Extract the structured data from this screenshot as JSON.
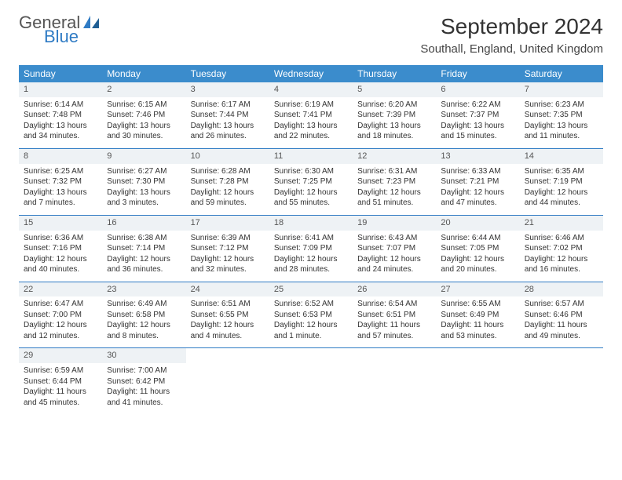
{
  "brand": {
    "general": "General",
    "blue": "Blue",
    "sail_color": "#2f7bc4"
  },
  "header": {
    "month_title": "September 2024",
    "location": "Southall, England, United Kingdom"
  },
  "colors": {
    "header_bg": "#3b8ccc",
    "header_fg": "#ffffff",
    "rule": "#2f7bc4",
    "daynum_bg": "#eef2f5",
    "text": "#333333"
  },
  "weekdays": [
    "Sunday",
    "Monday",
    "Tuesday",
    "Wednesday",
    "Thursday",
    "Friday",
    "Saturday"
  ],
  "weeks": [
    [
      {
        "n": "1",
        "sr": "Sunrise: 6:14 AM",
        "ss": "Sunset: 7:48 PM",
        "dl1": "Daylight: 13 hours",
        "dl2": "and 34 minutes."
      },
      {
        "n": "2",
        "sr": "Sunrise: 6:15 AM",
        "ss": "Sunset: 7:46 PM",
        "dl1": "Daylight: 13 hours",
        "dl2": "and 30 minutes."
      },
      {
        "n": "3",
        "sr": "Sunrise: 6:17 AM",
        "ss": "Sunset: 7:44 PM",
        "dl1": "Daylight: 13 hours",
        "dl2": "and 26 minutes."
      },
      {
        "n": "4",
        "sr": "Sunrise: 6:19 AM",
        "ss": "Sunset: 7:41 PM",
        "dl1": "Daylight: 13 hours",
        "dl2": "and 22 minutes."
      },
      {
        "n": "5",
        "sr": "Sunrise: 6:20 AM",
        "ss": "Sunset: 7:39 PM",
        "dl1": "Daylight: 13 hours",
        "dl2": "and 18 minutes."
      },
      {
        "n": "6",
        "sr": "Sunrise: 6:22 AM",
        "ss": "Sunset: 7:37 PM",
        "dl1": "Daylight: 13 hours",
        "dl2": "and 15 minutes."
      },
      {
        "n": "7",
        "sr": "Sunrise: 6:23 AM",
        "ss": "Sunset: 7:35 PM",
        "dl1": "Daylight: 13 hours",
        "dl2": "and 11 minutes."
      }
    ],
    [
      {
        "n": "8",
        "sr": "Sunrise: 6:25 AM",
        "ss": "Sunset: 7:32 PM",
        "dl1": "Daylight: 13 hours",
        "dl2": "and 7 minutes."
      },
      {
        "n": "9",
        "sr": "Sunrise: 6:27 AM",
        "ss": "Sunset: 7:30 PM",
        "dl1": "Daylight: 13 hours",
        "dl2": "and 3 minutes."
      },
      {
        "n": "10",
        "sr": "Sunrise: 6:28 AM",
        "ss": "Sunset: 7:28 PM",
        "dl1": "Daylight: 12 hours",
        "dl2": "and 59 minutes."
      },
      {
        "n": "11",
        "sr": "Sunrise: 6:30 AM",
        "ss": "Sunset: 7:25 PM",
        "dl1": "Daylight: 12 hours",
        "dl2": "and 55 minutes."
      },
      {
        "n": "12",
        "sr": "Sunrise: 6:31 AM",
        "ss": "Sunset: 7:23 PM",
        "dl1": "Daylight: 12 hours",
        "dl2": "and 51 minutes."
      },
      {
        "n": "13",
        "sr": "Sunrise: 6:33 AM",
        "ss": "Sunset: 7:21 PM",
        "dl1": "Daylight: 12 hours",
        "dl2": "and 47 minutes."
      },
      {
        "n": "14",
        "sr": "Sunrise: 6:35 AM",
        "ss": "Sunset: 7:19 PM",
        "dl1": "Daylight: 12 hours",
        "dl2": "and 44 minutes."
      }
    ],
    [
      {
        "n": "15",
        "sr": "Sunrise: 6:36 AM",
        "ss": "Sunset: 7:16 PM",
        "dl1": "Daylight: 12 hours",
        "dl2": "and 40 minutes."
      },
      {
        "n": "16",
        "sr": "Sunrise: 6:38 AM",
        "ss": "Sunset: 7:14 PM",
        "dl1": "Daylight: 12 hours",
        "dl2": "and 36 minutes."
      },
      {
        "n": "17",
        "sr": "Sunrise: 6:39 AM",
        "ss": "Sunset: 7:12 PM",
        "dl1": "Daylight: 12 hours",
        "dl2": "and 32 minutes."
      },
      {
        "n": "18",
        "sr": "Sunrise: 6:41 AM",
        "ss": "Sunset: 7:09 PM",
        "dl1": "Daylight: 12 hours",
        "dl2": "and 28 minutes."
      },
      {
        "n": "19",
        "sr": "Sunrise: 6:43 AM",
        "ss": "Sunset: 7:07 PM",
        "dl1": "Daylight: 12 hours",
        "dl2": "and 24 minutes."
      },
      {
        "n": "20",
        "sr": "Sunrise: 6:44 AM",
        "ss": "Sunset: 7:05 PM",
        "dl1": "Daylight: 12 hours",
        "dl2": "and 20 minutes."
      },
      {
        "n": "21",
        "sr": "Sunrise: 6:46 AM",
        "ss": "Sunset: 7:02 PM",
        "dl1": "Daylight: 12 hours",
        "dl2": "and 16 minutes."
      }
    ],
    [
      {
        "n": "22",
        "sr": "Sunrise: 6:47 AM",
        "ss": "Sunset: 7:00 PM",
        "dl1": "Daylight: 12 hours",
        "dl2": "and 12 minutes."
      },
      {
        "n": "23",
        "sr": "Sunrise: 6:49 AM",
        "ss": "Sunset: 6:58 PM",
        "dl1": "Daylight: 12 hours",
        "dl2": "and 8 minutes."
      },
      {
        "n": "24",
        "sr": "Sunrise: 6:51 AM",
        "ss": "Sunset: 6:55 PM",
        "dl1": "Daylight: 12 hours",
        "dl2": "and 4 minutes."
      },
      {
        "n": "25",
        "sr": "Sunrise: 6:52 AM",
        "ss": "Sunset: 6:53 PM",
        "dl1": "Daylight: 12 hours",
        "dl2": "and 1 minute."
      },
      {
        "n": "26",
        "sr": "Sunrise: 6:54 AM",
        "ss": "Sunset: 6:51 PM",
        "dl1": "Daylight: 11 hours",
        "dl2": "and 57 minutes."
      },
      {
        "n": "27",
        "sr": "Sunrise: 6:55 AM",
        "ss": "Sunset: 6:49 PM",
        "dl1": "Daylight: 11 hours",
        "dl2": "and 53 minutes."
      },
      {
        "n": "28",
        "sr": "Sunrise: 6:57 AM",
        "ss": "Sunset: 6:46 PM",
        "dl1": "Daylight: 11 hours",
        "dl2": "and 49 minutes."
      }
    ],
    [
      {
        "n": "29",
        "sr": "Sunrise: 6:59 AM",
        "ss": "Sunset: 6:44 PM",
        "dl1": "Daylight: 11 hours",
        "dl2": "and 45 minutes."
      },
      {
        "n": "30",
        "sr": "Sunrise: 7:00 AM",
        "ss": "Sunset: 6:42 PM",
        "dl1": "Daylight: 11 hours",
        "dl2": "and 41 minutes."
      },
      {
        "empty": true
      },
      {
        "empty": true
      },
      {
        "empty": true
      },
      {
        "empty": true
      },
      {
        "empty": true
      }
    ]
  ]
}
